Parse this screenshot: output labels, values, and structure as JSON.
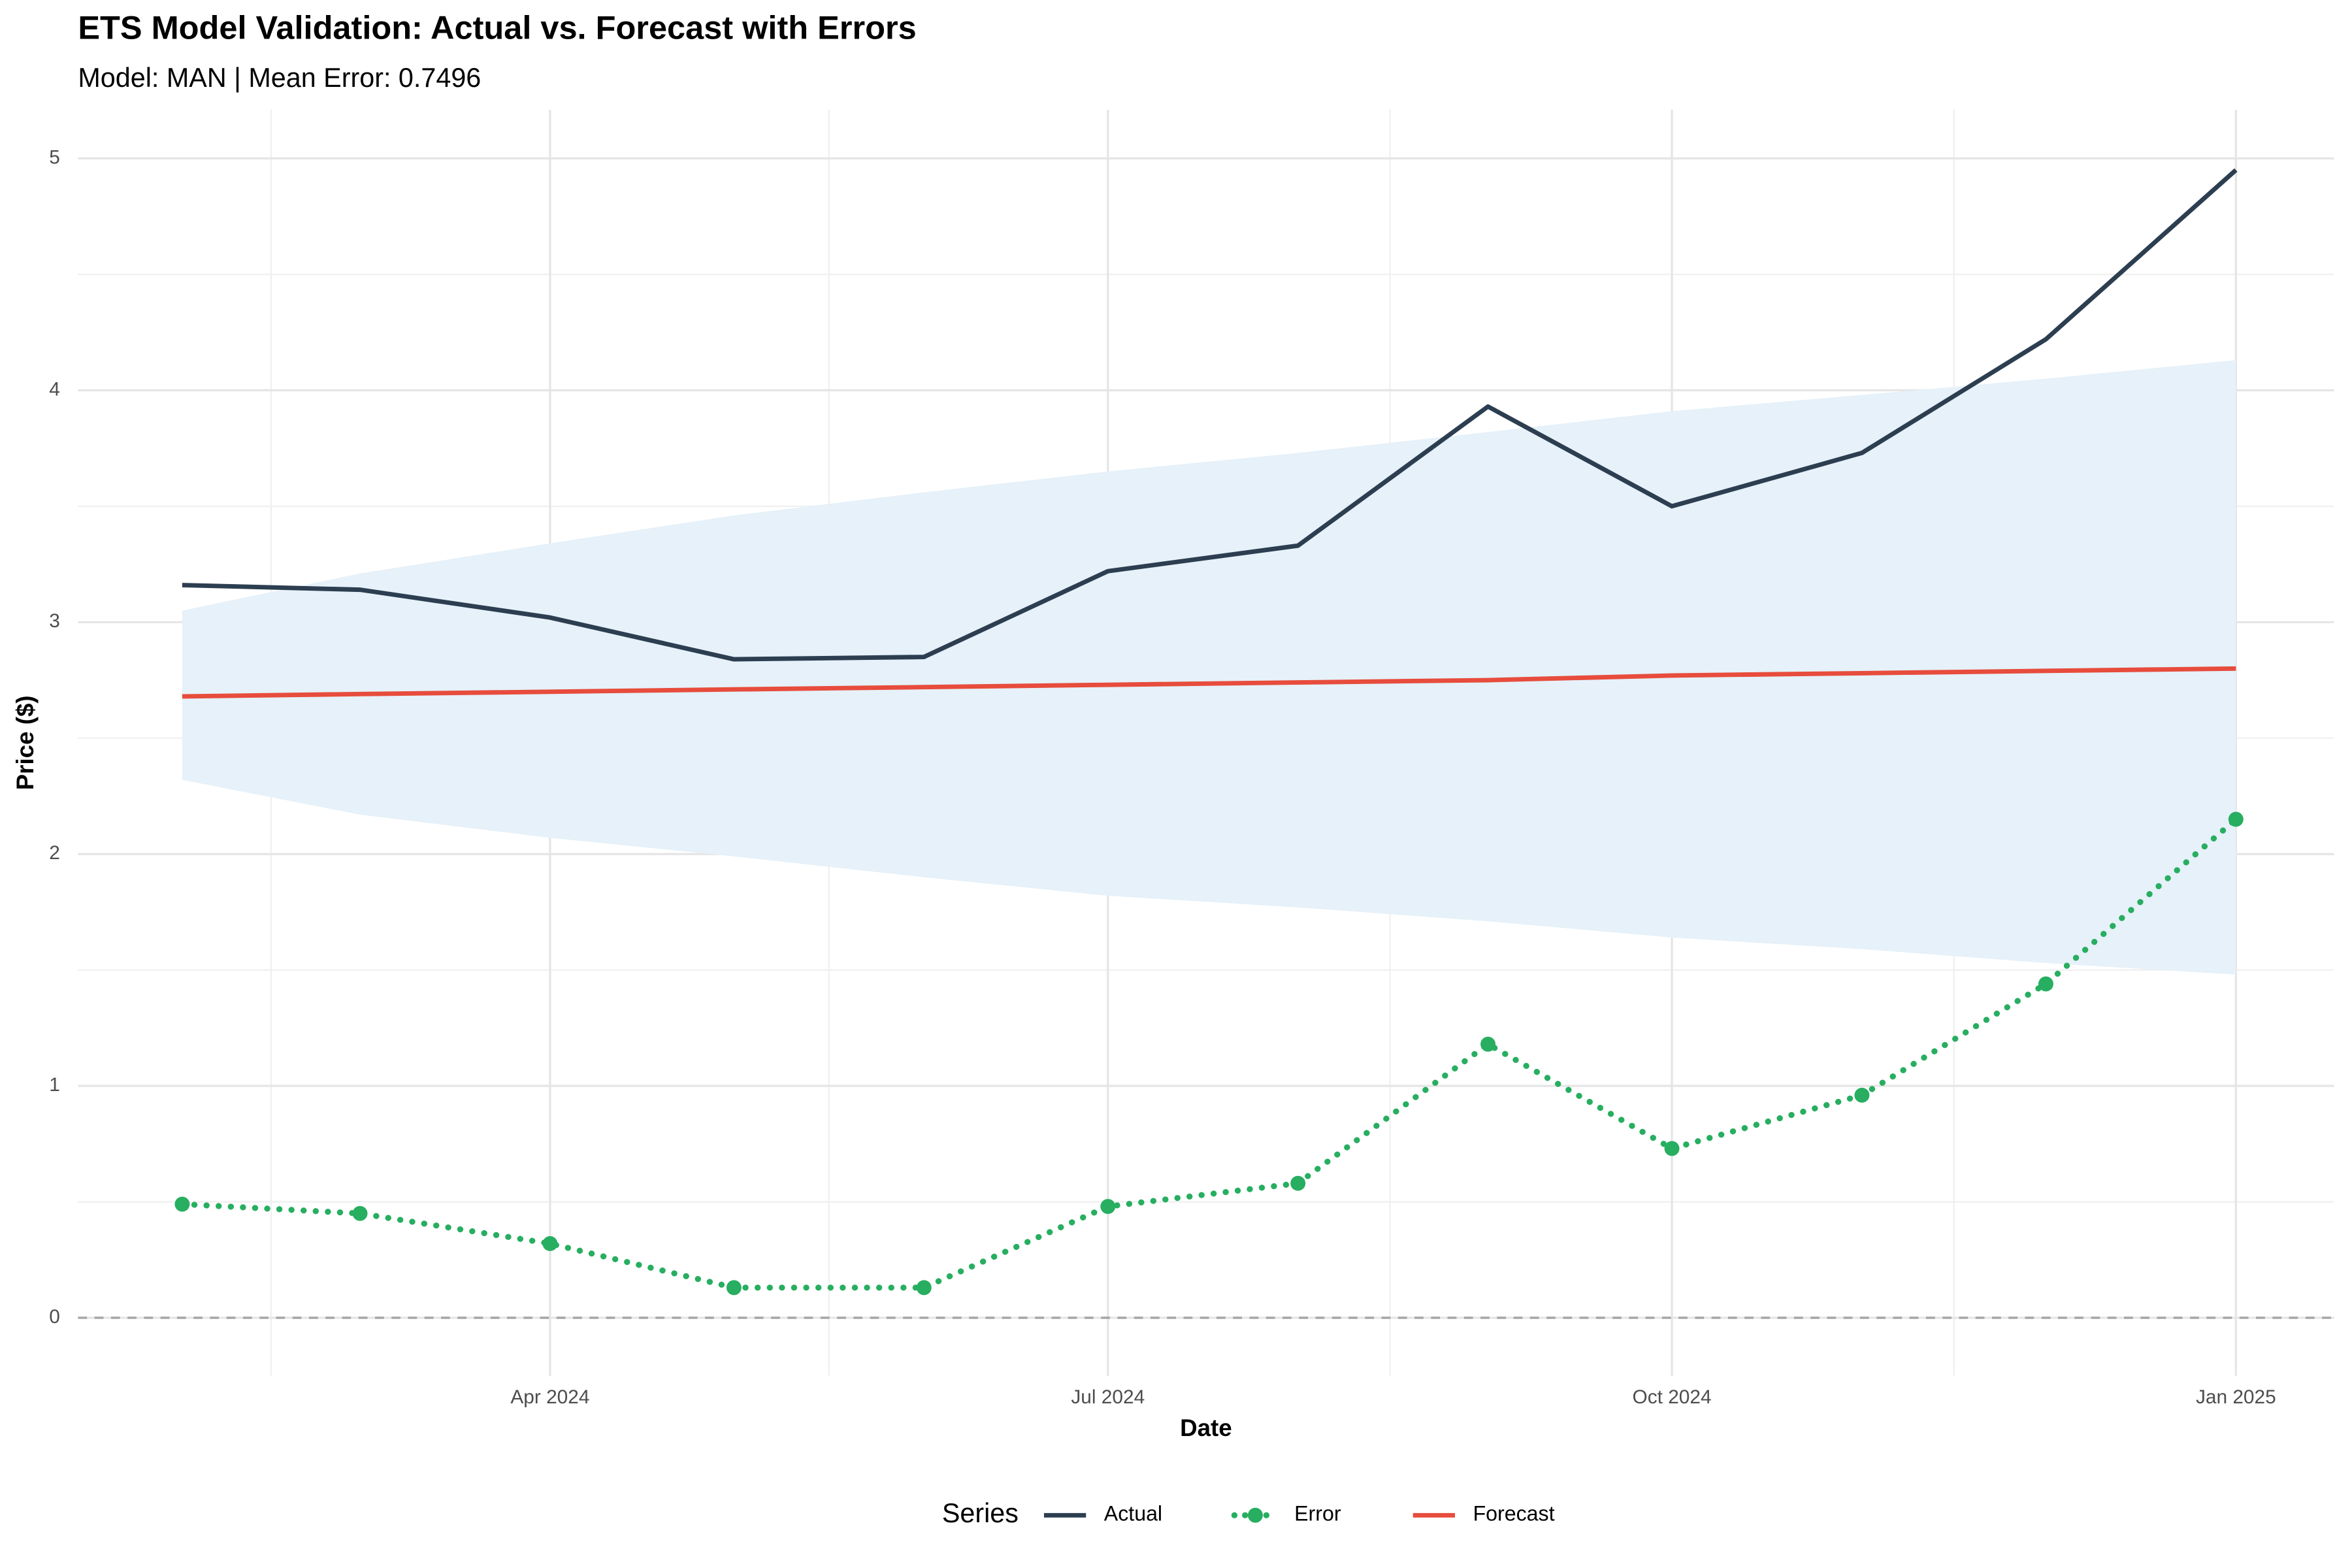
{
  "chart_data": {
    "type": "line",
    "title": "ETS Model Validation: Actual vs. Forecast with Errors",
    "subtitle": "Model: MAN | Mean Error: 0.7496",
    "x_label": "Date",
    "y_label": "Price ($)",
    "x": [
      "2024-02",
      "2024-03",
      "2024-04",
      "2024-05",
      "2024-06",
      "2024-07",
      "2024-08",
      "2024-09",
      "2024-10",
      "2024-11",
      "2024-12",
      "2025-01"
    ],
    "series": [
      {
        "name": "Actual",
        "color": "#2c3e50",
        "style": "solid",
        "marker": false,
        "values": [
          3.16,
          3.14,
          3.02,
          2.84,
          2.85,
          3.22,
          3.33,
          3.93,
          3.5,
          3.73,
          4.22,
          4.95
        ]
      },
      {
        "name": "Error",
        "color": "#27ae60",
        "style": "dotted",
        "marker": true,
        "values": [
          0.49,
          0.45,
          0.32,
          0.13,
          0.13,
          0.48,
          0.58,
          1.18,
          0.73,
          0.96,
          1.44,
          2.15
        ]
      },
      {
        "name": "Forecast",
        "color": "#e74c3c",
        "style": "solid",
        "marker": false,
        "values": [
          2.68,
          2.69,
          2.7,
          2.71,
          2.72,
          2.73,
          2.74,
          2.75,
          2.77,
          2.78,
          2.79,
          2.8
        ]
      }
    ],
    "band": {
      "color": "#e6f1f9",
      "upper": [
        3.05,
        3.21,
        3.34,
        3.46,
        3.56,
        3.65,
        3.73,
        3.82,
        3.91,
        3.98,
        4.05,
        4.13
      ],
      "lower": [
        2.32,
        2.17,
        2.07,
        1.99,
        1.9,
        1.82,
        1.77,
        1.71,
        1.64,
        1.59,
        1.53,
        1.48
      ]
    },
    "hline": 0,
    "xlim": [
      "2024-01-15",
      "2025-01-17"
    ],
    "xticks": [
      {
        "value": "2024-04",
        "label": "Apr 2024"
      },
      {
        "value": "2024-07",
        "label": "Jul 2024"
      },
      {
        "value": "2024-10",
        "label": "Oct 2024"
      },
      {
        "value": "2025-01",
        "label": "Jan 2025"
      }
    ],
    "ylim": [
      -0.25,
      5.21
    ],
    "yticks": [
      0,
      1,
      2,
      3,
      4,
      5
    ],
    "grid": true,
    "legend_title": "Series",
    "legend_position": "bottom"
  }
}
